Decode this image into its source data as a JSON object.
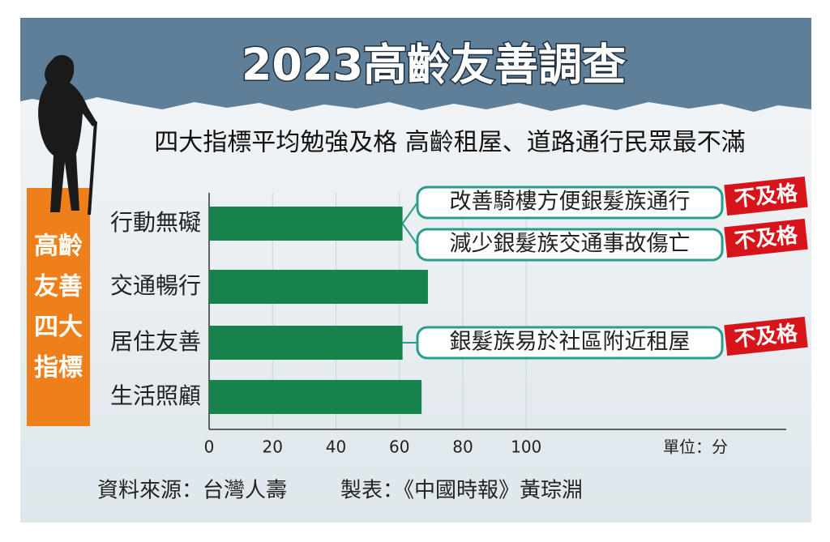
{
  "chart_data": {
    "type": "bar",
    "orientation": "horizontal",
    "title": "2023高齡友善調查",
    "subtitle": "四大指標平均勉強及格  高齡租屋、道路通行民眾最不滿",
    "side_label": [
      "高齡",
      "友善",
      "四大",
      "指標"
    ],
    "categories": [
      "行動無礙",
      "交通暢行",
      "居住友善",
      "生活照顧"
    ],
    "values": [
      61,
      69,
      61,
      67
    ],
    "color": "#16834d",
    "xlim": [
      0,
      182
    ],
    "xticks": [
      0,
      20,
      40,
      60,
      80,
      100
    ],
    "grid": true,
    "unit": "單位：分",
    "annotations": [
      {
        "text": "改善騎樓方便銀髮族通行",
        "badge": "不及格"
      },
      {
        "text": "減少銀髮族交通事故傷亡",
        "badge": "不及格"
      },
      {
        "text": "銀髮族易於社區附近租屋",
        "badge": "不及格"
      }
    ],
    "source": "資料來源：台灣人壽",
    "credit": "製表：《中國時報》黃琮淵"
  }
}
